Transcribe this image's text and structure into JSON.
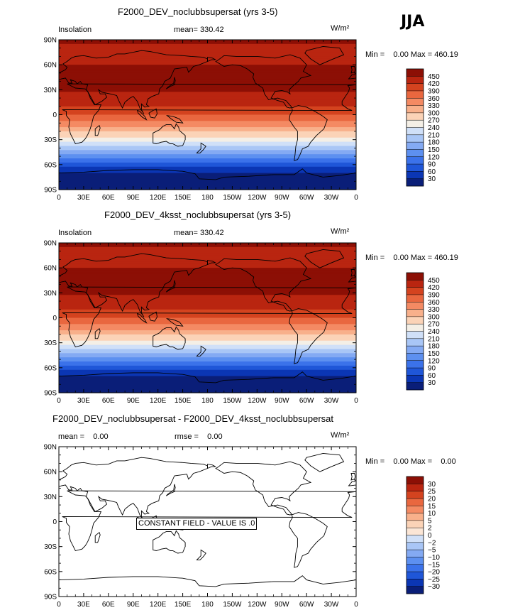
{
  "season": "JJA",
  "units": "W/m²",
  "panels": [
    {
      "title": "F2000_DEV_noclubbsupersat (yrs 3-5)",
      "left_label": "Insolation",
      "stat1_label": "mean=",
      "stat1_value": "330.42",
      "stat2_label": "",
      "stat2_value": "",
      "min_max": "Min =    0.00 Max = 460.19",
      "overlay_text": "",
      "field": "insolation"
    },
    {
      "title": "F2000_DEV_4ksst_noclubbsupersat (yrs 3-5)",
      "left_label": "Insolation",
      "stat1_label": "mean=",
      "stat1_value": "330.42",
      "stat2_label": "",
      "stat2_value": "",
      "min_max": "Min =    0.00 Max = 460.19",
      "overlay_text": "",
      "field": "insolation"
    },
    {
      "title": "F2000_DEV_noclubbsupersat - F2000_DEV_4ksst_noclubbsupersat",
      "left_label": "",
      "stat1_label": "mean =",
      "stat1_value": "0.00",
      "stat2_label": "rmse =",
      "stat2_value": "0.00",
      "min_max": "Min =    0.00 Max =    0.00",
      "overlay_text": "CONSTANT FIELD - VALUE IS .0",
      "field": "constant"
    }
  ],
  "axes": {
    "x_ticks": [
      "0",
      "30E",
      "60E",
      "90E",
      "120E",
      "150E",
      "180",
      "150W",
      "120W",
      "90W",
      "60W",
      "30W",
      "0"
    ],
    "y_ticks": [
      "90N",
      "60N",
      "30N",
      "0",
      "30S",
      "60S",
      "90S"
    ],
    "y_values": [
      90,
      60,
      30,
      0,
      -30,
      -60,
      -90
    ]
  },
  "colorbars": [
    {
      "labels": [
        "450",
        "420",
        "390",
        "360",
        "330",
        "300",
        "270",
        "240",
        "210",
        "180",
        "150",
        "120",
        "90",
        "60",
        "30"
      ]
    },
    {
      "labels": [
        "450",
        "420",
        "390",
        "360",
        "330",
        "300",
        "270",
        "240",
        "210",
        "180",
        "150",
        "120",
        "90",
        "60",
        "30"
      ]
    },
    {
      "labels": [
        "30",
        "25",
        "20",
        "15",
        "10",
        "5",
        "2",
        "0",
        "−2",
        "−5",
        "−10",
        "−15",
        "−20",
        "−25",
        "−30"
      ]
    }
  ],
  "chart_data": [
    {
      "type": "heatmap",
      "title": "F2000_DEV_noclubbsupersat (yrs 3-5)",
      "variable": "Insolation",
      "season": "JJA",
      "units": "W/m2",
      "mean": 330.42,
      "min": 0.0,
      "max": 460.19,
      "contour_levels": [
        30,
        60,
        90,
        120,
        150,
        180,
        210,
        240,
        270,
        300,
        330,
        360,
        390,
        420,
        450
      ],
      "zonal_profile": {
        "lat": [
          90,
          75,
          60,
          45,
          30,
          15,
          0,
          -15,
          -30,
          -45,
          -60,
          -75,
          -90
        ],
        "value": [
          455,
          440,
          450,
          460,
          455,
          430,
          395,
          330,
          255,
          165,
          75,
          10,
          0
        ]
      },
      "xlim": [
        0,
        360
      ],
      "ylim": [
        -90,
        90
      ]
    },
    {
      "type": "heatmap",
      "title": "F2000_DEV_4ksst_noclubbsupersat (yrs 3-5)",
      "variable": "Insolation",
      "season": "JJA",
      "units": "W/m2",
      "mean": 330.42,
      "min": 0.0,
      "max": 460.19,
      "contour_levels": [
        30,
        60,
        90,
        120,
        150,
        180,
        210,
        240,
        270,
        300,
        330,
        360,
        390,
        420,
        450
      ],
      "zonal_profile": {
        "lat": [
          90,
          75,
          60,
          45,
          30,
          15,
          0,
          -15,
          -30,
          -45,
          -60,
          -75,
          -90
        ],
        "value": [
          455,
          440,
          450,
          460,
          455,
          430,
          395,
          330,
          255,
          165,
          75,
          10,
          0
        ]
      },
      "xlim": [
        0,
        360
      ],
      "ylim": [
        -90,
        90
      ]
    },
    {
      "type": "heatmap",
      "title": "F2000_DEV_noclubbsupersat - F2000_DEV_4ksst_noclubbsupersat",
      "units": "W/m2",
      "mean": 0.0,
      "rmse": 0.0,
      "min": 0.0,
      "max": 0.0,
      "contour_levels": [
        -30,
        -25,
        -20,
        -15,
        -10,
        -5,
        -2,
        0,
        2,
        5,
        10,
        15,
        20,
        25,
        30
      ],
      "constant_value": 0.0,
      "xlim": [
        0,
        360
      ],
      "ylim": [
        -90,
        90
      ]
    }
  ],
  "palette": {
    "insolation": [
      "#0a1e78",
      "#0b36b4",
      "#1f56d8",
      "#3b72ea",
      "#5d90f0",
      "#84aaf3",
      "#a9c6f6",
      "#d0e0f8",
      "#f4efe6",
      "#fbd3b7",
      "#f8b08b",
      "#f48a63",
      "#e9673f",
      "#d4431f",
      "#b92510",
      "#8c0f05"
    ],
    "difference": [
      "#0a1e78",
      "#0b36b4",
      "#1f56d8",
      "#3b72ea",
      "#5d90f0",
      "#84aaf3",
      "#a9c6f6",
      "#d0e0f8",
      "#fbe6d6",
      "#fbd3b7",
      "#f8b08b",
      "#f48a63",
      "#e9673f",
      "#d4431f",
      "#b92510",
      "#8c0f05"
    ]
  }
}
